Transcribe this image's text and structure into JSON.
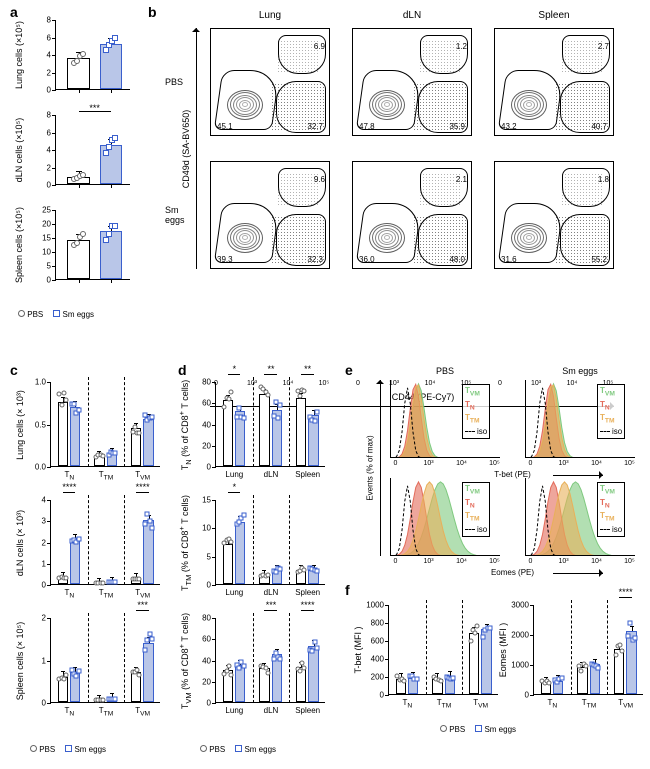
{
  "colors": {
    "pbs_fill": "#ffffff",
    "pbs_stroke": "#000000",
    "pbs_point": "#666666",
    "sm_fill": "#b9c6e8",
    "sm_stroke": "#3a5fcd",
    "sm_point": "#3a5fcd",
    "tvm": "#7fc97f",
    "tn": "#e36b5a",
    "ttm": "#e8b05a",
    "iso": "#000000"
  },
  "panel_a": {
    "charts": [
      {
        "ylabel": "Lung cells (×10⁵)",
        "ymax": 8,
        "ystep": 2,
        "pbs": 3.5,
        "sm": 5.2,
        "sig": null,
        "scatter_pbs": [
          3.0,
          3.2,
          3.8,
          4.0
        ],
        "scatter_sm": [
          4.5,
          5.0,
          5.5,
          5.8
        ]
      },
      {
        "ylabel": "dLN cells (×10⁵)",
        "ymax": 8,
        "ystep": 2,
        "pbs": 0.8,
        "sm": 4.5,
        "sig": "***",
        "scatter_pbs": [
          0.6,
          0.7,
          0.9,
          1.0
        ],
        "scatter_sm": [
          3.5,
          4.2,
          5.0,
          5.3
        ]
      },
      {
        "ylabel": "Spleen cells (×10⁵)",
        "ymax": 25,
        "ystep": 5,
        "pbs": 14,
        "sm": 17,
        "sig": null,
        "scatter_pbs": [
          12,
          13,
          15,
          16
        ],
        "scatter_sm": [
          14,
          16,
          19,
          19
        ]
      }
    ],
    "legend": [
      "PBS",
      "Sm eggs"
    ]
  },
  "panel_b": {
    "cols": [
      "Lung",
      "dLN",
      "Spleen"
    ],
    "rows": [
      "PBS",
      "Sm eggs"
    ],
    "xaxis": "CD44 (PE-Cy7)",
    "yaxis": "CD49d (SA-BV650)",
    "gate_vals": [
      [
        {
          "tl": "",
          "tr": "6.9",
          "bl": "45.1",
          "br": "32.7"
        },
        {
          "tl": "",
          "tr": "1.2",
          "bl": "47.8",
          "br": "35.9"
        },
        {
          "tl": "",
          "tr": "2.7",
          "bl": "43.2",
          "br": "40.7"
        }
      ],
      [
        {
          "tl": "",
          "tr": "9.6",
          "bl": "39.3",
          "br": "32.3"
        },
        {
          "tl": "",
          "tr": "2.1",
          "bl": "36.0",
          "br": "48.0"
        },
        {
          "tl": "",
          "tr": "1.8",
          "bl": "31.6",
          "br": "55.2"
        }
      ]
    ],
    "xticks": [
      "0",
      "10³",
      "10⁴",
      "10⁵"
    ]
  },
  "panel_c": {
    "charts": [
      {
        "ylabel": "Lung cells (× 10³)",
        "ymax": 1.0,
        "ystep": 0.5,
        "groups": [
          [
            0.75,
            0.7
          ],
          [
            0.12,
            0.15
          ],
          [
            0.45,
            0.55
          ]
        ],
        "sig": [
          null,
          null,
          null
        ]
      },
      {
        "ylabel": "dLN cells (× 10³)",
        "ymax": 4,
        "ystep": 1,
        "groups": [
          [
            0.3,
            2.1
          ],
          [
            0.05,
            0.1
          ],
          [
            0.25,
            3.0
          ]
        ],
        "sig": [
          "****",
          null,
          "****"
        ]
      },
      {
        "ylabel": "Spleen cells (× 10⁵)",
        "ymax": 2,
        "ystep": 1,
        "groups": [
          [
            0.6,
            0.7
          ],
          [
            0.05,
            0.08
          ],
          [
            0.7,
            1.4
          ]
        ],
        "sig": [
          null,
          null,
          "***"
        ]
      }
    ],
    "xcats": [
      "T_N",
      "T_TM",
      "T_VM"
    ],
    "legend": [
      "PBS",
      "Sm eggs"
    ]
  },
  "panel_d": {
    "charts": [
      {
        "ylabel": "T_N (% of CD8⁺ T cells)",
        "ymax": 80,
        "ystep": 20,
        "groups": [
          [
            62,
            52
          ],
          [
            68,
            53
          ],
          [
            64,
            48
          ]
        ],
        "sig": [
          "*",
          "**",
          "**"
        ]
      },
      {
        "ylabel": "T_TM (% of CD8⁺ T cells)",
        "ymax": 15,
        "ystep": 5,
        "groups": [
          [
            7,
            11
          ],
          [
            1.5,
            2.5
          ],
          [
            2.5,
            2.5
          ]
        ],
        "sig": [
          "*",
          null,
          null
        ]
      },
      {
        "ylabel": "T_VM (% of CD8⁺ T cells)",
        "ymax": 80,
        "ystep": 20,
        "groups": [
          [
            30,
            35
          ],
          [
            32,
            45
          ],
          [
            33,
            53
          ]
        ],
        "sig": [
          null,
          "***",
          "****"
        ]
      }
    ],
    "xcats": [
      "Lung",
      "dLN",
      "Spleen"
    ],
    "legend": [
      "PBS",
      "Sm eggs"
    ]
  },
  "panel_e": {
    "cols": [
      "PBS",
      "Sm eggs"
    ],
    "rows": [
      "T-bet (PE)",
      "Eomes (PE)"
    ],
    "yaxis": "Events (% of max)",
    "legend": [
      "T_VM",
      "T_N",
      "T_TM",
      "iso"
    ],
    "xticks": [
      "0",
      "10³",
      "10⁴",
      "10⁵"
    ]
  },
  "panel_f": {
    "charts": [
      {
        "ylabel": "T-bet (MFI )",
        "ymax": 1000,
        "ystep": 200,
        "groups": [
          [
            170,
            180
          ],
          [
            170,
            190
          ],
          [
            680,
            720
          ]
        ],
        "sig": [
          null,
          null,
          null
        ]
      },
      {
        "ylabel": "Eomes (MFI )",
        "ymax": 3000,
        "ystep": 1000,
        "groups": [
          [
            400,
            450
          ],
          [
            900,
            1000
          ],
          [
            1500,
            2100
          ]
        ],
        "sig": [
          null,
          null,
          "****"
        ]
      }
    ],
    "xcats": [
      "T_N",
      "T_TM",
      "T_VM"
    ],
    "legend": [
      "PBS",
      "Sm eggs"
    ]
  }
}
